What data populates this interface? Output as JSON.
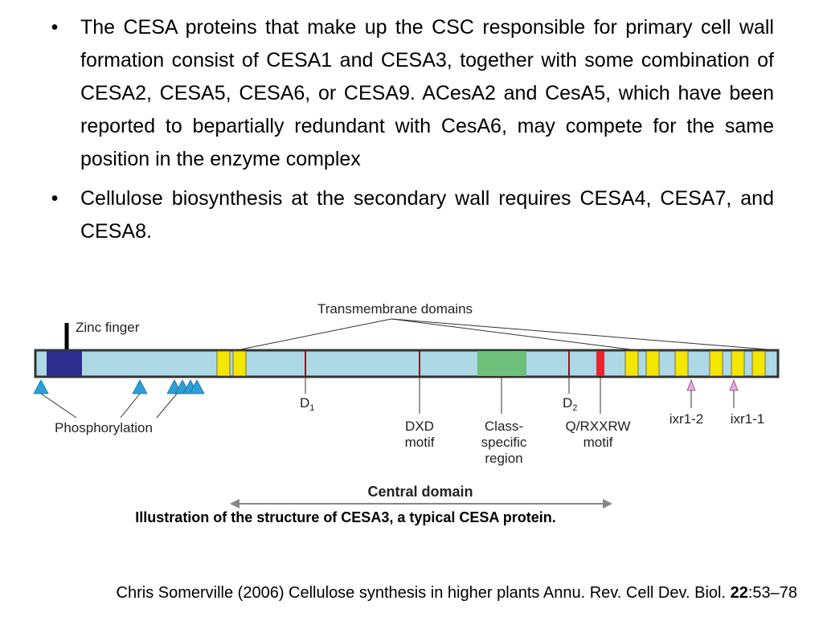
{
  "bullets": [
    "The CESA proteins that make up the CSC responsible for primary cell wall formation consist of CESA1 and CESA3, together with some combination of CESA2, CESA5, CESA6, or CESA9. ACesA2 and CesA5, which have been reported to bepartially redundant with CesA6, may compete for the same position in the enzyme complex",
    "Cellulose biosynthesis at the secondary wall requires CESA4, CESA7, and CESA8."
  ],
  "bullet_symbol": "•",
  "diagram": {
    "labels": {
      "transmembrane": "Transmembrane domains",
      "zinc_finger": "Zinc finger",
      "phosphorylation": "Phosphorylation",
      "d1": "D",
      "d1_sub": "1",
      "d2": "D",
      "d2_sub": "2",
      "dxd_line1": "DXD",
      "dxd_line2": "motif",
      "class_line1": "Class-",
      "class_line2": "specific",
      "class_line3": "region",
      "qrx_line1": "Q/RXXRW",
      "qrx_line2": "motif",
      "ixr12": "ixr1-2",
      "ixr11": "ixr1-1",
      "central": "Central domain"
    },
    "colors": {
      "protein": "#add8e6",
      "zinc": "#2e2e8f",
      "tm": "#f5e600",
      "class_region": "#6dbf7a",
      "qrxxrw": "#e8252b",
      "phospho": "#2a9fd8",
      "ixr": "#e6a8d6",
      "d_marker": "#8b1a1a"
    }
  },
  "caption": "Illustration of the structure of CESA3, a typical CESA protein.",
  "citation": {
    "text": "Chris Somerville (2006) Cellulose synthesis in higher plants Annu. Rev. Cell Dev. Biol. ",
    "volume": "22",
    "pages": ":53–78"
  }
}
